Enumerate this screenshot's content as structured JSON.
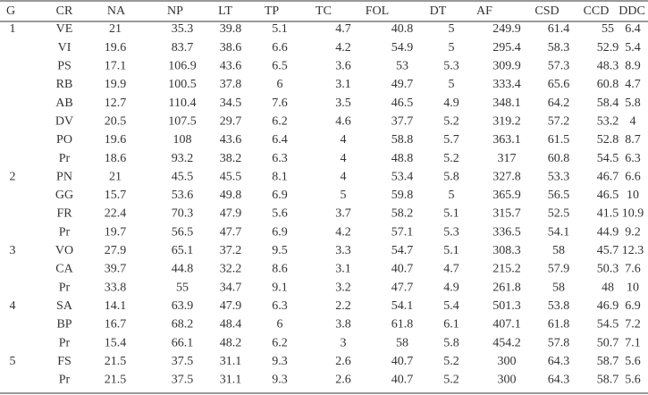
{
  "table": {
    "headers": [
      "G",
      "CR",
      "NA",
      "NP",
      "LT",
      "TP",
      "TC",
      "FOL",
      "DT",
      "AF",
      "CSD",
      "CCD",
      "DDC"
    ],
    "rows": [
      [
        "1",
        "VE",
        "21",
        "35.3",
        "39.8",
        "5.1",
        "4.7",
        "40.8",
        "5",
        "249.9",
        "61.4",
        "55",
        "6.4"
      ],
      [
        null,
        "VI",
        "19.6",
        "83.7",
        "38.6",
        "6.6",
        "4.2",
        "54.9",
        "5",
        "295.4",
        "58.3",
        "52.9",
        "5.4"
      ],
      [
        null,
        "PS",
        "17.1",
        "106.9",
        "43.6",
        "6.5",
        "3.6",
        "53",
        "5.3",
        "309.9",
        "57.3",
        "48.3",
        "8.9"
      ],
      [
        null,
        "RB",
        "19.9",
        "100.5",
        "37.8",
        "6",
        "3.1",
        "49.7",
        "5",
        "333.4",
        "65.6",
        "60.8",
        "4.7"
      ],
      [
        null,
        "AB",
        "12.7",
        "110.4",
        "34.5",
        "7.6",
        "3.5",
        "46.5",
        "4.9",
        "348.1",
        "64.2",
        "58.4",
        "5.8"
      ],
      [
        null,
        "DV",
        "20.5",
        "107.5",
        "29.7",
        "6.2",
        "4.6",
        "37.7",
        "5.2",
        "319.2",
        "57.2",
        "53.2",
        "4"
      ],
      [
        null,
        "PO",
        "19.6",
        "108",
        "43.6",
        "6.4",
        "4",
        "58.8",
        "5.7",
        "363.1",
        "61.5",
        "52.8",
        "8.7"
      ],
      [
        null,
        "Pr",
        "18.6",
        "93.2",
        "38.2",
        "6.3",
        "4",
        "48.8",
        "5.2",
        "317",
        "60.8",
        "54.5",
        "6.3"
      ],
      [
        "2",
        "PN",
        "21",
        "45.5",
        "45.5",
        "8.1",
        "4",
        "53.4",
        "5.8",
        "327.8",
        "53.3",
        "46.7",
        "6.6"
      ],
      [
        null,
        "GG",
        "15.7",
        "53.6",
        "49.8",
        "6.9",
        "5",
        "59.8",
        "5",
        "365.9",
        "56.5",
        "46.5",
        "10"
      ],
      [
        null,
        "FR",
        "22.4",
        "70.3",
        "47.9",
        "5.6",
        "3.7",
        "58.2",
        "5.1",
        "315.7",
        "52.5",
        "41.5",
        "10.9"
      ],
      [
        null,
        "Pr",
        "19.7",
        "56.5",
        "47.7",
        "6.9",
        "4.2",
        "57.1",
        "5.3",
        "336.5",
        "54.1",
        "44.9",
        "9.2"
      ],
      [
        "3",
        "VO",
        "27.9",
        "65.1",
        "37.2",
        "9.5",
        "3.3",
        "54.7",
        "5.1",
        "308.3",
        "58",
        "45.7",
        "12.3"
      ],
      [
        null,
        "CA",
        "39.7",
        "44.8",
        "32.2",
        "8.6",
        "3.1",
        "40.7",
        "4.7",
        "215.2",
        "57.9",
        "50.3",
        "7.6"
      ],
      [
        null,
        "Pr",
        "33.8",
        "55",
        "34.7",
        "9.1",
        "3.2",
        "47.7",
        "4.9",
        "261.8",
        "58",
        "48",
        "10"
      ],
      [
        "4",
        "SA",
        "14.1",
        "63.9",
        "47.9",
        "6.3",
        "2.2",
        "54.1",
        "5.4",
        "501.3",
        "53.8",
        "46.9",
        "6.9"
      ],
      [
        null,
        "BP",
        "16.7",
        "68.2",
        "48.4",
        "6",
        "3.8",
        "61.8",
        "6.1",
        "407.1",
        "61.8",
        "54.5",
        "7.2"
      ],
      [
        null,
        "Pr",
        "15.4",
        "66.1",
        "48.2",
        "6.2",
        "3",
        "58",
        "5.8",
        "454.2",
        "57.8",
        "50.7",
        "7.1"
      ],
      [
        "5",
        "FS",
        "21.5",
        "37.5",
        "31.1",
        "9.3",
        "2.6",
        "40.7",
        "5.2",
        "300",
        "64.3",
        "58.7",
        "5.6"
      ],
      [
        null,
        "Pr",
        "21.5",
        "37.5",
        "31.1",
        "9.3",
        "2.6",
        "40.7",
        "5.2",
        "300",
        "64.3",
        "58.7",
        "5.6"
      ]
    ]
  }
}
